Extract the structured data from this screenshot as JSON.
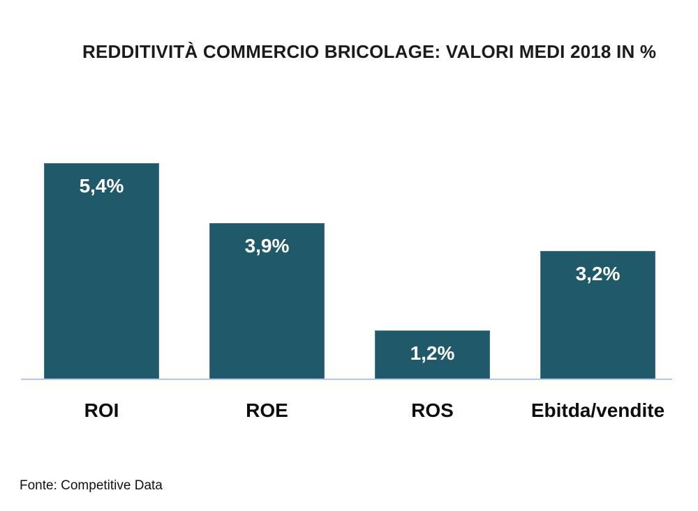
{
  "title": "REDDITIVITÀ COMMERCIO BRICOLAGE: VALORI MEDI 2018 IN %",
  "source_note": "Fonte: Competitive Data",
  "colors": {
    "bar": "#20596A",
    "bar_border": "#4A7488",
    "axis_line": "#B4C6E7",
    "title_text": "#1B1B1B",
    "value_label_on_bar": "#FFFFFF"
  },
  "chart_data": {
    "type": "bar",
    "title": "REDDITIVITÀ COMMERCIO BRICOLAGE: VALORI MEDI 2018 IN %",
    "categories": [
      "ROI",
      "ROE",
      "ROS",
      "Ebitda/vendite"
    ],
    "values": [
      5.4,
      3.9,
      1.2,
      3.2
    ],
    "value_labels": [
      "5,4%",
      "3,9%",
      "1,2%",
      "3,2%"
    ],
    "xlabel": "",
    "ylabel": "",
    "ylim": [
      0,
      6
    ],
    "grid": false,
    "legend": false,
    "value_label_position": "inside-top",
    "source": "Fonte: Competitive Data"
  }
}
